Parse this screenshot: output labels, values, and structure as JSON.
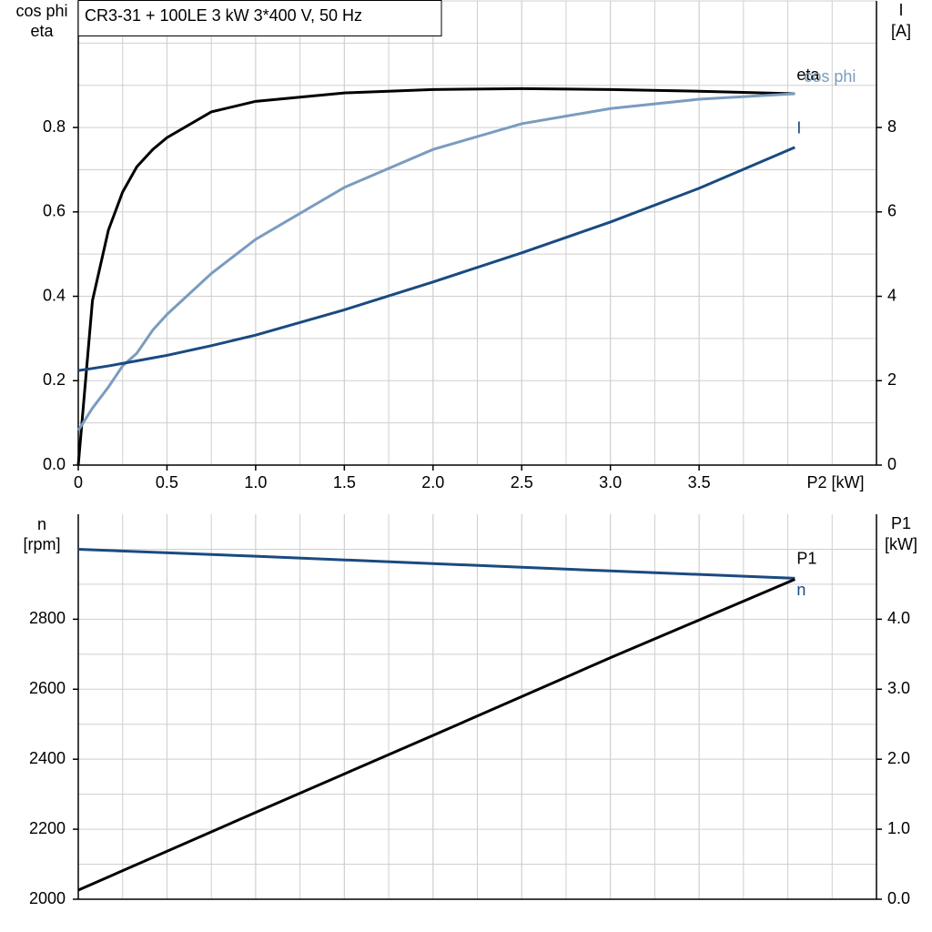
{
  "chart_data": [
    {
      "type": "line",
      "title": "CR3-31 + 100LE   3 kW   3*400 V, 50 Hz",
      "ylabel": [
        "cos phi",
        "eta"
      ],
      "y2label": [
        "I",
        "[A]"
      ],
      "xlabel": "P2 [kW]",
      "xlim": [
        0,
        4.5
      ],
      "xticks": [
        {
          "value": 0,
          "label": "0"
        },
        0.5,
        {
          "value": 1,
          "label": "1.0"
        },
        1.5,
        {
          "value": 2,
          "label": "2.0"
        },
        2.5,
        {
          "value": 3,
          "label": "3.0"
        },
        3.5
      ],
      "ylim": [
        0,
        1.1
      ],
      "yticks": [
        {
          "value": 0,
          "label": "0.0"
        },
        0.2,
        0.4,
        0.6,
        0.8
      ],
      "y2lim": [
        0,
        11
      ],
      "y2ticks": [
        0,
        2,
        4,
        6,
        8
      ],
      "grid": true,
      "x": [
        0,
        0.08,
        0.17,
        0.25,
        0.33,
        0.42,
        0.5,
        0.75,
        1,
        1.5,
        2,
        2.5,
        3,
        3.5,
        4.04
      ],
      "series": [
        {
          "name": "eta",
          "color": "#000000",
          "values": [
            0,
            0.39,
            0.557,
            0.647,
            0.707,
            0.748,
            0.776,
            0.837,
            0.862,
            0.882,
            0.89,
            0.892,
            0.89,
            0.886,
            0.88
          ]
        },
        {
          "name": "cos phi",
          "color": "#7a9cbf",
          "values": [
            0.082,
            0.135,
            0.185,
            0.235,
            0.265,
            0.32,
            0.357,
            0.454,
            0.535,
            0.658,
            0.748,
            0.809,
            0.845,
            0.867,
            0.88
          ]
        },
        {
          "name": "I",
          "color": "#1a4a80",
          "axis": "y2",
          "values": [
            2.24,
            2.29,
            2.35,
            2.41,
            2.47,
            2.54,
            2.6,
            2.83,
            3.08,
            3.68,
            4.34,
            5.03,
            5.76,
            6.56,
            7.53
          ]
        }
      ]
    },
    {
      "type": "line",
      "ylabel": [
        "n",
        "[rpm]"
      ],
      "y2label": [
        "P1",
        "[kW]"
      ],
      "xlim": [
        0,
        4.5
      ],
      "ylim": [
        2000,
        3100
      ],
      "yticks": [
        2000,
        2200,
        2400,
        2600,
        2800
      ],
      "y2lim": [
        0,
        5.5
      ],
      "y2ticks": [
        {
          "value": 0,
          "label": "0.0"
        },
        {
          "value": 1,
          "label": "1.0"
        },
        {
          "value": 2,
          "label": "2.0"
        },
        {
          "value": 3,
          "label": "3.0"
        },
        {
          "value": 4,
          "label": "4.0"
        }
      ],
      "grid": true,
      "x": [
        0,
        1,
        2,
        3,
        4.04
      ],
      "series": [
        {
          "name": "n",
          "color": "#1a4a80",
          "values": [
            3000,
            2980,
            2959,
            2938,
            2917
          ]
        },
        {
          "name": "P1",
          "color": "#000000",
          "axis": "y2",
          "values": [
            0.13,
            1.24,
            2.34,
            3.45,
            4.57
          ]
        }
      ]
    }
  ]
}
